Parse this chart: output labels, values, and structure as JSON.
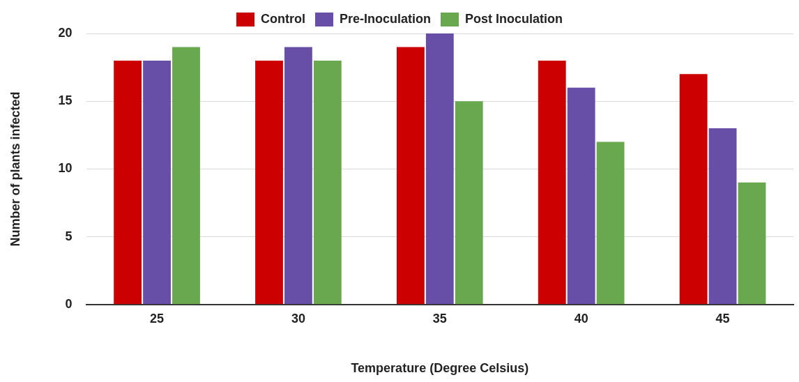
{
  "chart_data": {
    "type": "bar",
    "xlabel": "Temperature (Degree Celsius)",
    "ylabel": "Number of plants infected",
    "categories": [
      "25",
      "30",
      "35",
      "40",
      "45"
    ],
    "series": [
      {
        "name": "Control",
        "color": "#cc0000",
        "values": [
          18,
          18,
          19,
          18,
          17
        ]
      },
      {
        "name": "Pre-Inoculation",
        "color": "#674ea7",
        "values": [
          18,
          19,
          20,
          16,
          13
        ]
      },
      {
        "name": "Post Inoculation",
        "color": "#6aa84f",
        "values": [
          19,
          18,
          15,
          12,
          9
        ]
      }
    ],
    "ylim": [
      0,
      20
    ],
    "yticks": [
      0,
      5,
      10,
      15,
      20
    ],
    "grid": "y",
    "legend": "top"
  }
}
